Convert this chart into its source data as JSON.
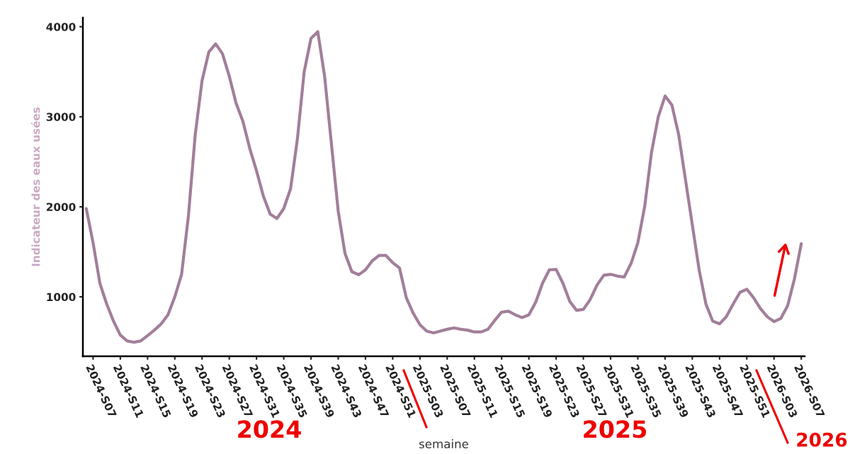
{
  "chart_data": {
    "type": "line",
    "xlabel": "semaine",
    "ylabel": "Indicateur des eaux usées",
    "categories": [
      null,
      "2024-S07",
      null,
      null,
      null,
      "2024-S11",
      null,
      null,
      null,
      "2024-S15",
      null,
      null,
      null,
      "2024-S19",
      null,
      null,
      null,
      "2024-S23",
      null,
      null,
      null,
      "2024-S27",
      null,
      null,
      null,
      "2024-S31",
      null,
      null,
      null,
      "2024-S35",
      null,
      null,
      null,
      "2024-S39",
      null,
      null,
      null,
      "2024-S43",
      null,
      null,
      null,
      "2024-S47",
      null,
      null,
      null,
      "2024-S51",
      null,
      null,
      null,
      "2025-S03",
      null,
      null,
      null,
      "2025-S07",
      null,
      null,
      null,
      "2025-S11",
      null,
      null,
      null,
      "2025-S15",
      null,
      null,
      null,
      "2025-S19",
      null,
      null,
      null,
      "2025-S23",
      null,
      null,
      null,
      "2025-S27",
      null,
      null,
      null,
      "2025-S31",
      null,
      null,
      null,
      "2025-S35",
      null,
      null,
      null,
      "2025-S39",
      null,
      null,
      null,
      "2025-S43",
      null,
      null,
      null,
      "2025-S47",
      null,
      null,
      null,
      "2025-S51",
      null,
      null,
      null,
      "2026-S03",
      null,
      null,
      null,
      "2026-S07"
    ],
    "series": [
      {
        "color": "#a27e9a",
        "values": [
          1980,
          1600,
          1150,
          920,
          730,
          575,
          510,
          495,
          510,
          570,
          630,
          700,
          800,
          1000,
          1250,
          1900,
          2800,
          3400,
          3720,
          3810,
          3700,
          3450,
          3150,
          2950,
          2650,
          2400,
          2120,
          1920,
          1870,
          1980,
          2200,
          2750,
          3500,
          3870,
          3945,
          3450,
          2700,
          1950,
          1480,
          1280,
          1245,
          1300,
          1400,
          1460,
          1460,
          1380,
          1320,
          990,
          820,
          690,
          620,
          600,
          620,
          640,
          655,
          640,
          630,
          610,
          610,
          640,
          740,
          830,
          840,
          800,
          770,
          800,
          940,
          1150,
          1300,
          1305,
          1150,
          950,
          850,
          860,
          970,
          1130,
          1240,
          1250,
          1230,
          1220,
          1370,
          1600,
          2000,
          2600,
          3000,
          3230,
          3130,
          2800,
          2300,
          1800,
          1300,
          920,
          730,
          700,
          780,
          920,
          1050,
          1085,
          990,
          870,
          780,
          725,
          760,
          900,
          1200,
          1590
        ]
      }
    ],
    "ylim": [
      340,
      4100
    ],
    "yticks": [
      1000,
      2000,
      3000,
      4000
    ],
    "grid": false,
    "legend": false,
    "marker": "none",
    "line_style": "solid",
    "annotations": [
      "2024",
      "2025",
      "2026"
    ]
  }
}
